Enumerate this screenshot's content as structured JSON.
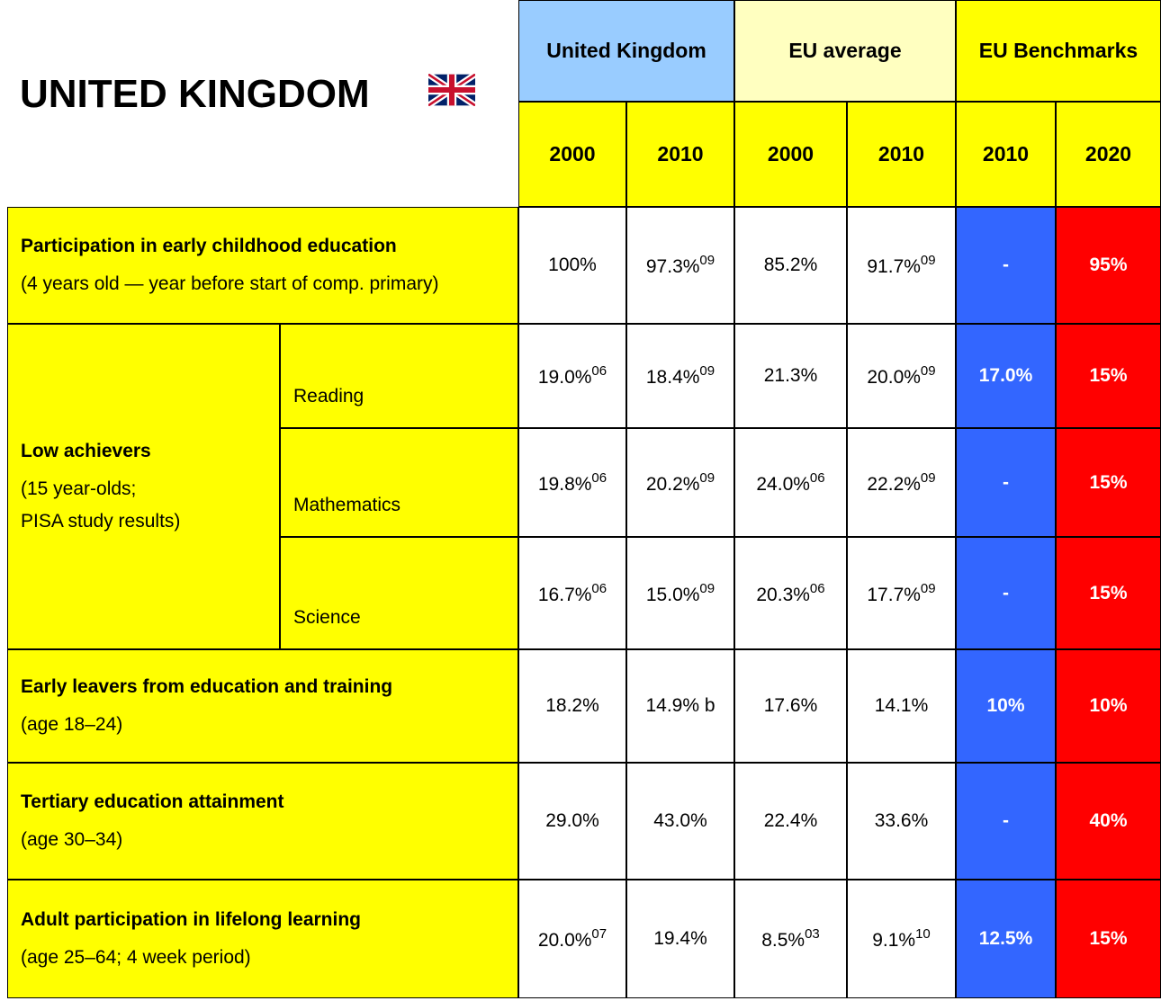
{
  "header": {
    "title": "UNITED KINGDOM",
    "groups": [
      "United Kingdom",
      "EU average",
      "EU Benchmarks"
    ],
    "years": [
      "2000",
      "2010",
      "2000",
      "2010",
      "2010",
      "2020"
    ]
  },
  "rows": [
    {
      "label": "Participation in early childhood education",
      "sublabel": [
        "(4 years old — year before start of comp. primary)"
      ],
      "values": [
        "100%",
        {
          "text": "97.3%",
          "sup": "09"
        },
        "85.2%",
        {
          "text": "91.7%",
          "sup": "09"
        },
        "-",
        "95%"
      ]
    },
    {
      "label": "Low achievers",
      "sublabel": [
        "(15 year-olds;",
        "PISA study results)"
      ],
      "subrows": [
        {
          "label": "Reading",
          "values": [
            {
              "text": "19.0%",
              "sup": "06"
            },
            {
              "text": "18.4%",
              "sup": "09"
            },
            "21.3%",
            {
              "text": "20.0%",
              "sup": "09"
            },
            "17.0%",
            "15%"
          ]
        },
        {
          "label": "Mathematics",
          "values": [
            {
              "text": "19.8%",
              "sup": "06"
            },
            {
              "text": "20.2%",
              "sup": "09"
            },
            {
              "text": "24.0%",
              "sup": "06"
            },
            {
              "text": "22.2%",
              "sup": "09"
            },
            "-",
            "15%"
          ]
        },
        {
          "label": "Science",
          "values": [
            {
              "text": "16.7%",
              "sup": "06"
            },
            {
              "text": "15.0%",
              "sup": "09"
            },
            {
              "text": "20.3%",
              "sup": "06"
            },
            {
              "text": "17.7%",
              "sup": "09"
            },
            "-",
            "15%"
          ]
        }
      ]
    },
    {
      "label": "Early leavers from education and training",
      "sublabel": [
        "(age 18–24)"
      ],
      "values": [
        "18.2%",
        "14.9% b",
        "17.6%",
        "14.1%",
        "10%",
        "10%"
      ]
    },
    {
      "label": "Tertiary education attainment",
      "sublabel": [
        "(age 30–34)"
      ],
      "values": [
        "29.0%",
        "43.0%",
        "22.4%",
        "33.6%",
        "-",
        "40%"
      ]
    },
    {
      "label": "Adult participation in lifelong learning",
      "sublabel": [
        "(age 25–64; 4 week period)"
      ],
      "values": [
        {
          "text": "20.0%",
          "sup": "07"
        },
        "19.4%",
        {
          "text": "8.5%",
          "sup": "03"
        },
        {
          "text": "9.1%",
          "sup": "10"
        },
        "12.5%",
        "15%"
      ]
    }
  ]
}
